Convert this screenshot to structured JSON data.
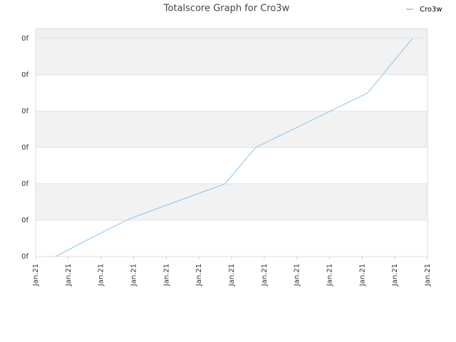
{
  "chart_data": {
    "type": "line",
    "title": "Totalscore Graph for Cro3w",
    "x": [
      0.61,
      1.96,
      2.88,
      5.8,
      6.74,
      10.17,
      11.54
    ],
    "series": [
      {
        "name": "Cro3w",
        "color": "#88c4f0",
        "values": [
          0,
          0.63,
          1.04,
          2,
          3,
          4.5,
          6
        ]
      }
    ],
    "xlim": [
      0,
      12
    ],
    "xticks": [
      {
        "value": 0,
        "label": "Jan.21"
      },
      {
        "value": 1,
        "label": "Jan.21"
      },
      {
        "value": 2,
        "label": "Jan.21"
      },
      {
        "value": 3,
        "label": "Jan.21"
      },
      {
        "value": 4,
        "label": "Jan.21"
      },
      {
        "value": 5,
        "label": "Jan.21"
      },
      {
        "value": 6,
        "label": "Jan.21"
      },
      {
        "value": 7,
        "label": "Jan.21"
      },
      {
        "value": 8,
        "label": "Jan.21"
      },
      {
        "value": 9,
        "label": "Jan.21"
      },
      {
        "value": 10,
        "label": "Jan.21"
      },
      {
        "value": 11,
        "label": "Jan.21"
      },
      {
        "value": 12,
        "label": "Jan.21"
      }
    ],
    "ylim": [
      0,
      6.27
    ],
    "yticks": [
      {
        "value": 0,
        "label": "0f"
      },
      {
        "value": 1,
        "label": "0f"
      },
      {
        "value": 2,
        "label": "0f"
      },
      {
        "value": 3,
        "label": "0f"
      },
      {
        "value": 4,
        "label": "0f"
      },
      {
        "value": 5,
        "label": "0f"
      },
      {
        "value": 6,
        "label": "0f"
      }
    ],
    "grid": true,
    "legend": "top-right"
  }
}
